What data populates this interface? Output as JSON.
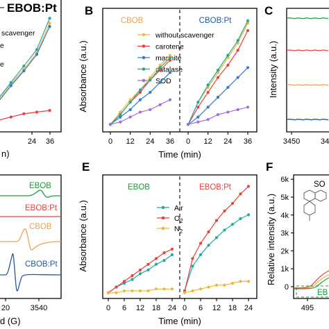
{
  "colors": {
    "yellow": "#f2b632",
    "red": "#e8413c",
    "blue": "#2f7bd2",
    "teal": "#22a8a0",
    "purple": "#a070d8",
    "green": "#1f9a3a",
    "orange": "#f0a050",
    "navy": "#1f5aa6"
  },
  "chart_data": [
    {
      "panel": "A",
      "type": "line",
      "xlabel": "Time (min)",
      "xlabel_visible": "n)",
      "x_ticks": [
        "24",
        "36"
      ],
      "xlim": [
        0,
        40
      ],
      "legend_fragments": [
        "scavenger",
        "e",
        "e"
      ],
      "header": "EBOB:Pt",
      "series": [
        {
          "color": "yellow",
          "x": [
            0,
            6,
            12,
            18,
            24,
            30,
            36
          ],
          "y": [
            0.03,
            0.1,
            0.19,
            0.29,
            0.38,
            0.48,
            0.66
          ]
        },
        {
          "color": "blue",
          "x": [
            0,
            6,
            12,
            18,
            24,
            30,
            36
          ],
          "y": [
            0.03,
            0.1,
            0.18,
            0.28,
            0.37,
            0.47,
            0.64
          ]
        },
        {
          "color": "teal",
          "x": [
            0,
            6,
            12,
            18,
            24,
            30,
            36
          ],
          "y": [
            0.03,
            0.11,
            0.2,
            0.3,
            0.4,
            0.5,
            0.69
          ]
        },
        {
          "color": "red",
          "x": [
            0,
            6,
            12,
            18,
            24,
            30,
            36
          ],
          "y": [
            0.03,
            0.05,
            0.07,
            0.09,
            0.11,
            0.12,
            0.13
          ]
        }
      ]
    },
    {
      "panel": "B",
      "type": "line",
      "xlabel": "Time (min)",
      "ylabel": "Absorbance (a.u.)",
      "x_ticks": [
        "0",
        "12",
        "24",
        "36",
        "0",
        "12",
        "24",
        "36"
      ],
      "header_left": "CBOB",
      "header_right": "CBOB:Pt",
      "legend": [
        "without scavenger",
        "carotene",
        "mannite",
        "catalase",
        "SOD"
      ],
      "legend_colors": [
        "yellow",
        "red",
        "blue",
        "teal",
        "purple"
      ],
      "legend_placement": "top-right",
      "left_segment": [
        {
          "name": "without scavenger",
          "x": [
            0,
            6,
            12,
            18,
            24,
            30,
            36
          ],
          "y": [
            0.03,
            0.08,
            0.13,
            0.17,
            0.22,
            0.27,
            0.31
          ]
        },
        {
          "name": "carotene",
          "x": [
            0,
            6,
            12,
            18,
            24,
            30,
            36
          ],
          "y": [
            0.03,
            0.07,
            0.12,
            0.16,
            0.21,
            0.25,
            0.29
          ]
        },
        {
          "name": "mannite",
          "x": [
            0,
            6,
            12,
            18,
            24,
            30,
            36
          ],
          "y": [
            0.03,
            0.06,
            0.09,
            0.13,
            0.16,
            0.2,
            0.24
          ]
        },
        {
          "name": "catalase",
          "x": [
            0,
            6,
            12,
            18,
            24,
            30,
            36
          ],
          "y": [
            0.03,
            0.07,
            0.12,
            0.17,
            0.21,
            0.26,
            0.3
          ]
        },
        {
          "name": "SOD",
          "x": [
            0,
            6,
            12,
            18,
            24,
            30,
            36
          ],
          "y": [
            0.03,
            0.04,
            0.06,
            0.08,
            0.09,
            0.11,
            0.13
          ]
        }
      ],
      "right_segment": [
        {
          "name": "without scavenger",
          "x": [
            0,
            6,
            12,
            18,
            24,
            30,
            36
          ],
          "y": [
            0.03,
            0.12,
            0.18,
            0.24,
            0.3,
            0.36,
            0.44
          ]
        },
        {
          "name": "carotene",
          "x": [
            0,
            6,
            12,
            18,
            24,
            30,
            36
          ],
          "y": [
            0.03,
            0.1,
            0.16,
            0.22,
            0.27,
            0.33,
            0.41
          ]
        },
        {
          "name": "mannite",
          "x": [
            0,
            6,
            12,
            18,
            24,
            30,
            36
          ],
          "y": [
            0.03,
            0.06,
            0.1,
            0.14,
            0.18,
            0.22,
            0.26
          ]
        },
        {
          "name": "catalase",
          "x": [
            0,
            6,
            12,
            18,
            24,
            30,
            36
          ],
          "y": [
            0.03,
            0.12,
            0.19,
            0.25,
            0.31,
            0.37,
            0.45
          ]
        },
        {
          "name": "SOD",
          "x": [
            0,
            6,
            12,
            18,
            24,
            30,
            36
          ],
          "y": [
            0.03,
            0.04,
            0.05,
            0.07,
            0.08,
            0.09,
            0.1
          ]
        }
      ],
      "ylim": [
        0,
        0.5
      ]
    },
    {
      "panel": "C",
      "type": "line",
      "ylabel": "Intensity (a.u.)",
      "x_ticks": [
        "3450",
        "34"
      ],
      "traces": [
        {
          "color": "green",
          "level": 0.92
        },
        {
          "color": "red",
          "level": 0.66
        },
        {
          "color": "orange",
          "level": 0.38
        },
        {
          "color": "navy",
          "level": 0.1
        }
      ]
    },
    {
      "panel": "D",
      "type": "line",
      "xlabel_visible": "d (G)",
      "x_ticks": [
        "20",
        "3540"
      ],
      "trace_labels": [
        {
          "text": "EBOB",
          "color": "green"
        },
        {
          "text": "EBOB:Pt",
          "color": "red"
        },
        {
          "text": "CBOB",
          "color": "orange"
        },
        {
          "text": "CBOB:Pt",
          "color": "navy"
        }
      ]
    },
    {
      "panel": "E",
      "type": "line",
      "xlabel": "Time (min)",
      "ylabel": "Absorbance (a.u.)",
      "x_ticks": [
        "0",
        "6",
        "12",
        "18",
        "24",
        "0",
        "6",
        "12",
        "18",
        "24"
      ],
      "header_left": "EBOB",
      "header_right": "EBOB:Pt",
      "legend": [
        "Air",
        "O",
        "N"
      ],
      "legend_subscripts": [
        "",
        "2",
        "2"
      ],
      "legend_colors": [
        "teal",
        "red",
        "yellow"
      ],
      "left_segment": [
        {
          "name": "Air",
          "x": [
            0,
            3,
            6,
            9,
            12,
            15,
            18,
            21,
            24
          ],
          "y": [
            0.03,
            0.06,
            0.08,
            0.1,
            0.13,
            0.15,
            0.18,
            0.2,
            0.23
          ]
        },
        {
          "name": "O2",
          "x": [
            0,
            3,
            6,
            9,
            12,
            15,
            18,
            21,
            24
          ],
          "y": [
            0.03,
            0.06,
            0.09,
            0.12,
            0.15,
            0.18,
            0.21,
            0.24,
            0.26
          ]
        },
        {
          "name": "N2",
          "x": [
            0,
            3,
            6,
            9,
            12,
            15,
            18,
            21,
            24
          ],
          "y": [
            0.03,
            0.03,
            0.04,
            0.04,
            0.04,
            0.04,
            0.05,
            0.05,
            0.05
          ]
        }
      ],
      "right_segment": [
        {
          "name": "Air",
          "x": [
            0,
            3,
            6,
            9,
            12,
            15,
            18,
            21,
            24
          ],
          "y": [
            0.04,
            0.17,
            0.23,
            0.28,
            0.32,
            0.36,
            0.39,
            0.42,
            0.44
          ]
        },
        {
          "name": "O2",
          "x": [
            0,
            3,
            6,
            9,
            12,
            15,
            18,
            21,
            24
          ],
          "y": [
            0.04,
            0.21,
            0.29,
            0.35,
            0.41,
            0.46,
            0.5,
            0.55,
            0.59
          ]
        },
        {
          "name": "N2",
          "x": [
            0,
            3,
            6,
            9,
            12,
            15,
            18,
            21,
            24
          ],
          "y": [
            0.03,
            0.04,
            0.05,
            0.06,
            0.07,
            0.07,
            0.08,
            0.09,
            0.09
          ]
        }
      ],
      "ylim": [
        0,
        0.65
      ]
    },
    {
      "panel": "F",
      "type": "line",
      "ylabel": "Relative intensity (a.u.)",
      "y_ticks": [
        "0",
        "1k",
        "2k",
        "3k",
        "4k",
        "5k",
        "6k"
      ],
      "x_ticks": [
        "495"
      ],
      "header_fragment": "SO",
      "box_label": "EB"
    }
  ]
}
